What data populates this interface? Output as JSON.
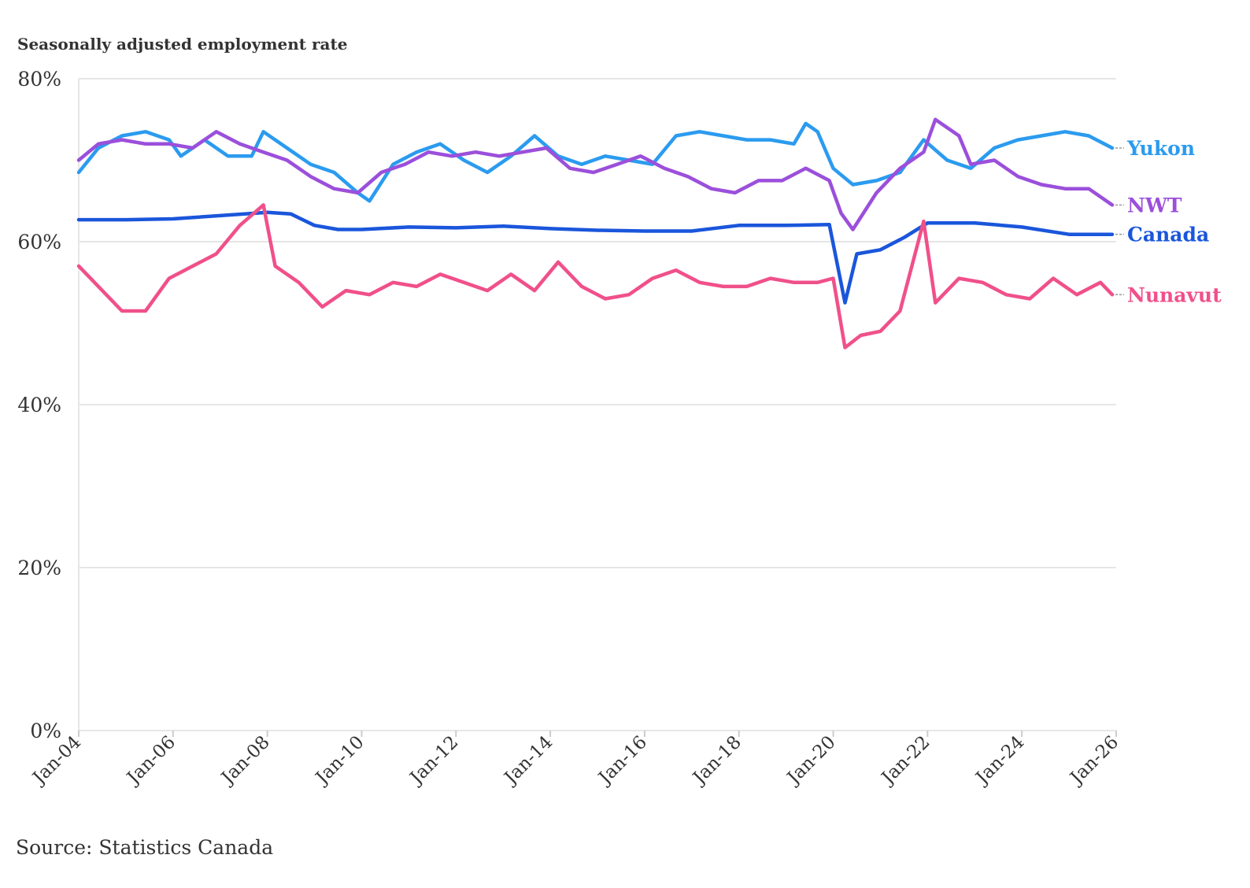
{
  "header": {
    "title": "Seasonally adjusted employment rate"
  },
  "footer": {
    "source": "Source: Statistics Canada"
  },
  "chart_data": {
    "type": "line",
    "title": "Seasonally adjusted employment rate",
    "xlabel": "",
    "ylabel": "",
    "x_range": [
      "2004-01",
      "2026-01"
    ],
    "x_ticks": [
      "Jan-04",
      "Jan-06",
      "Jan-08",
      "Jan-10",
      "Jan-12",
      "Jan-14",
      "Jan-16",
      "Jan-18",
      "Jan-20",
      "Jan-22",
      "Jan-24",
      "Jan-26"
    ],
    "x_tick_dates": [
      "2004-01",
      "2006-01",
      "2008-01",
      "2010-01",
      "2012-01",
      "2014-01",
      "2016-01",
      "2018-01",
      "2020-01",
      "2022-01",
      "2024-01",
      "2026-01"
    ],
    "ylim": [
      0,
      80
    ],
    "y_ticks": [
      0,
      20,
      40,
      60,
      80
    ],
    "y_tick_labels": [
      "0%",
      "20%",
      "40%",
      "60%",
      "80%"
    ],
    "grid": true,
    "legend": "end-of-line labels on right",
    "series": [
      {
        "name": "Yukon",
        "color": "#2b9bef",
        "points": [
          [
            "2004-01",
            68.5
          ],
          [
            "2004-06",
            71.5
          ],
          [
            "2004-12",
            73.0
          ],
          [
            "2005-06",
            73.5
          ],
          [
            "2005-12",
            72.5
          ],
          [
            "2006-03",
            70.5
          ],
          [
            "2006-09",
            72.5
          ],
          [
            "2007-03",
            70.5
          ],
          [
            "2007-09",
            70.5
          ],
          [
            "2007-12",
            73.5
          ],
          [
            "2008-06",
            71.5
          ],
          [
            "2008-12",
            69.5
          ],
          [
            "2009-06",
            68.5
          ],
          [
            "2009-12",
            66.0
          ],
          [
            "2010-03",
            65.0
          ],
          [
            "2010-09",
            69.5
          ],
          [
            "2011-03",
            71.0
          ],
          [
            "2011-09",
            72.0
          ],
          [
            "2012-03",
            70.0
          ],
          [
            "2012-09",
            68.5
          ],
          [
            "2013-03",
            70.5
          ],
          [
            "2013-09",
            73.0
          ],
          [
            "2014-03",
            70.5
          ],
          [
            "2014-09",
            69.5
          ],
          [
            "2015-03",
            70.5
          ],
          [
            "2015-09",
            70.0
          ],
          [
            "2016-03",
            69.5
          ],
          [
            "2016-09",
            73.0
          ],
          [
            "2017-03",
            73.5
          ],
          [
            "2017-09",
            73.0
          ],
          [
            "2018-03",
            72.5
          ],
          [
            "2018-09",
            72.5
          ],
          [
            "2019-03",
            72.0
          ],
          [
            "2019-06",
            74.5
          ],
          [
            "2019-09",
            73.5
          ],
          [
            "2020-01",
            69.0
          ],
          [
            "2020-06",
            67.0
          ],
          [
            "2020-12",
            67.5
          ],
          [
            "2021-06",
            68.5
          ],
          [
            "2021-12",
            72.5
          ],
          [
            "2022-06",
            70.0
          ],
          [
            "2022-12",
            69.0
          ],
          [
            "2023-06",
            71.5
          ],
          [
            "2023-12",
            72.5
          ],
          [
            "2024-06",
            73.0
          ],
          [
            "2024-12",
            73.5
          ],
          [
            "2025-06",
            73.0
          ],
          [
            "2025-12",
            71.5
          ]
        ]
      },
      {
        "name": "NWT",
        "color": "#9b4fdb",
        "points": [
          [
            "2004-01",
            70.0
          ],
          [
            "2004-06",
            72.0
          ],
          [
            "2004-12",
            72.5
          ],
          [
            "2005-06",
            72.0
          ],
          [
            "2005-12",
            72.0
          ],
          [
            "2006-06",
            71.5
          ],
          [
            "2006-12",
            73.5
          ],
          [
            "2007-06",
            72.0
          ],
          [
            "2007-12",
            71.0
          ],
          [
            "2008-06",
            70.0
          ],
          [
            "2008-12",
            68.0
          ],
          [
            "2009-06",
            66.5
          ],
          [
            "2009-12",
            66.0
          ],
          [
            "2010-06",
            68.5
          ],
          [
            "2010-12",
            69.5
          ],
          [
            "2011-06",
            71.0
          ],
          [
            "2011-12",
            70.5
          ],
          [
            "2012-06",
            71.0
          ],
          [
            "2012-12",
            70.5
          ],
          [
            "2013-06",
            71.0
          ],
          [
            "2013-12",
            71.5
          ],
          [
            "2014-06",
            69.0
          ],
          [
            "2014-12",
            68.5
          ],
          [
            "2015-06",
            69.5
          ],
          [
            "2015-12",
            70.5
          ],
          [
            "2016-06",
            69.0
          ],
          [
            "2016-12",
            68.0
          ],
          [
            "2017-06",
            66.5
          ],
          [
            "2017-12",
            66.0
          ],
          [
            "2018-06",
            67.5
          ],
          [
            "2018-12",
            67.5
          ],
          [
            "2019-06",
            69.0
          ],
          [
            "2019-12",
            67.5
          ],
          [
            "2020-03",
            63.5
          ],
          [
            "2020-06",
            61.5
          ],
          [
            "2020-12",
            66.0
          ],
          [
            "2021-06",
            69.0
          ],
          [
            "2021-12",
            71.0
          ],
          [
            "2022-03",
            75.0
          ],
          [
            "2022-09",
            73.0
          ],
          [
            "2022-12",
            69.5
          ],
          [
            "2023-06",
            70.0
          ],
          [
            "2023-12",
            68.0
          ],
          [
            "2024-06",
            67.0
          ],
          [
            "2024-12",
            66.5
          ],
          [
            "2025-06",
            66.5
          ],
          [
            "2025-12",
            64.5
          ]
        ]
      },
      {
        "name": "Canada",
        "color": "#1a56db",
        "points": [
          [
            "2004-01",
            62.7
          ],
          [
            "2005-01",
            62.7
          ],
          [
            "2006-01",
            62.8
          ],
          [
            "2007-01",
            63.2
          ],
          [
            "2008-01",
            63.6
          ],
          [
            "2008-07",
            63.4
          ],
          [
            "2009-01",
            62.0
          ],
          [
            "2009-07",
            61.5
          ],
          [
            "2010-01",
            61.5
          ],
          [
            "2011-01",
            61.8
          ],
          [
            "2012-01",
            61.7
          ],
          [
            "2013-01",
            61.9
          ],
          [
            "2014-01",
            61.6
          ],
          [
            "2015-01",
            61.4
          ],
          [
            "2016-01",
            61.3
          ],
          [
            "2017-01",
            61.3
          ],
          [
            "2018-01",
            62.0
          ],
          [
            "2019-01",
            62.0
          ],
          [
            "2019-12",
            62.1
          ],
          [
            "2020-04",
            52.5
          ],
          [
            "2020-07",
            58.5
          ],
          [
            "2021-01",
            59.0
          ],
          [
            "2021-07",
            60.5
          ],
          [
            "2022-01",
            62.3
          ],
          [
            "2023-01",
            62.3
          ],
          [
            "2024-01",
            61.8
          ],
          [
            "2025-01",
            60.9
          ],
          [
            "2025-12",
            60.9
          ]
        ]
      },
      {
        "name": "Nunavut",
        "color": "#f0508a",
        "points": [
          [
            "2004-01",
            57.0
          ],
          [
            "2004-06",
            54.5
          ],
          [
            "2004-12",
            51.5
          ],
          [
            "2005-06",
            51.5
          ],
          [
            "2005-12",
            55.5
          ],
          [
            "2006-06",
            57.0
          ],
          [
            "2006-12",
            58.5
          ],
          [
            "2007-06",
            62.0
          ],
          [
            "2007-12",
            64.5
          ],
          [
            "2008-03",
            57.0
          ],
          [
            "2008-09",
            55.0
          ],
          [
            "2009-03",
            52.0
          ],
          [
            "2009-09",
            54.0
          ],
          [
            "2010-03",
            53.5
          ],
          [
            "2010-09",
            55.0
          ],
          [
            "2011-03",
            54.5
          ],
          [
            "2011-09",
            56.0
          ],
          [
            "2012-03",
            55.0
          ],
          [
            "2012-09",
            54.0
          ],
          [
            "2013-03",
            56.0
          ],
          [
            "2013-09",
            54.0
          ],
          [
            "2014-03",
            57.5
          ],
          [
            "2014-09",
            54.5
          ],
          [
            "2015-03",
            53.0
          ],
          [
            "2015-09",
            53.5
          ],
          [
            "2016-03",
            55.5
          ],
          [
            "2016-09",
            56.5
          ],
          [
            "2017-03",
            55.0
          ],
          [
            "2017-09",
            54.5
          ],
          [
            "2018-03",
            54.5
          ],
          [
            "2018-09",
            55.5
          ],
          [
            "2019-03",
            55.0
          ],
          [
            "2019-09",
            55.0
          ],
          [
            "2020-01",
            55.5
          ],
          [
            "2020-04",
            47.0
          ],
          [
            "2020-08",
            48.5
          ],
          [
            "2021-01",
            49.0
          ],
          [
            "2021-06",
            51.5
          ],
          [
            "2021-12",
            62.5
          ],
          [
            "2022-03",
            52.5
          ],
          [
            "2022-09",
            55.5
          ],
          [
            "2023-03",
            55.0
          ],
          [
            "2023-09",
            53.5
          ],
          [
            "2024-03",
            53.0
          ],
          [
            "2024-09",
            55.5
          ],
          [
            "2025-03",
            53.5
          ],
          [
            "2025-09",
            55.0
          ],
          [
            "2025-12",
            53.5
          ]
        ]
      }
    ]
  }
}
